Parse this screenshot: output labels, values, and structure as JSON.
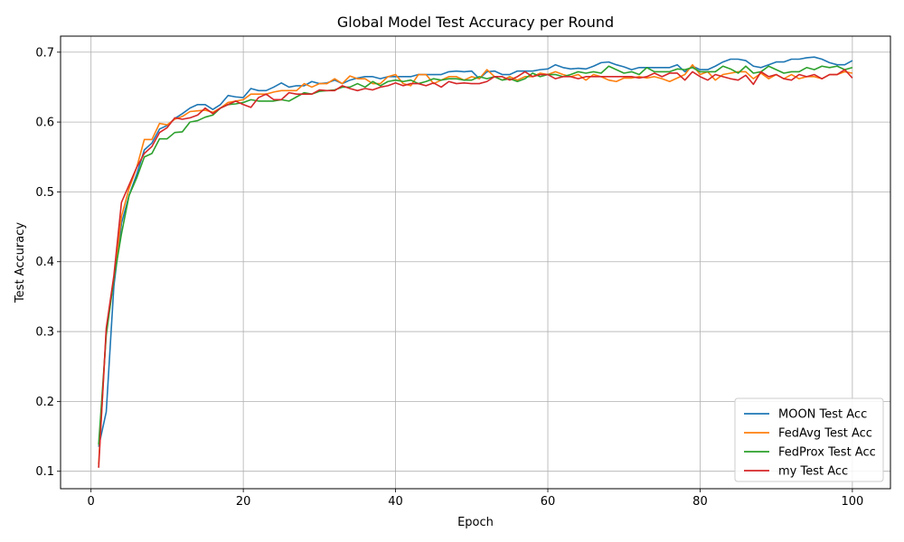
{
  "chart_data": {
    "type": "line",
    "title": "Global Model Test Accuracy per Round",
    "xlabel": "Epoch",
    "ylabel": "Test Accuracy",
    "xlim": [
      -4,
      105
    ],
    "ylim": [
      0.075,
      0.723
    ],
    "x_ticks": [
      0,
      20,
      40,
      60,
      80,
      100
    ],
    "x_tick_labels": [
      "0",
      "20",
      "40",
      "60",
      "80",
      "100"
    ],
    "y_ticks": [
      0.1,
      0.2,
      0.3,
      0.4,
      0.5,
      0.6,
      0.7
    ],
    "y_tick_labels": [
      "0.1",
      "0.2",
      "0.3",
      "0.4",
      "0.5",
      "0.6",
      "0.7"
    ],
    "grid": true,
    "legend_position": "bottom-right",
    "x_start": 1,
    "series": [
      {
        "name": "MOON Test Acc",
        "color": "#1f77b4",
        "values": [
          0.135,
          0.185,
          0.365,
          0.455,
          0.495,
          0.525,
          0.56,
          0.57,
          0.59,
          0.595,
          0.605,
          0.612,
          0.62,
          0.625,
          0.625,
          0.618,
          0.625,
          0.638,
          0.636,
          0.635,
          0.648,
          0.645,
          0.645,
          0.65,
          0.656,
          0.65,
          0.652,
          0.652,
          0.658,
          0.655,
          0.656,
          0.66,
          0.655,
          0.66,
          0.663,
          0.665,
          0.665,
          0.662,
          0.665,
          0.665,
          0.665,
          0.665,
          0.668,
          0.668,
          0.668,
          0.668,
          0.672,
          0.673,
          0.672,
          0.673,
          0.662,
          0.672,
          0.673,
          0.668,
          0.668,
          0.673,
          0.673,
          0.673,
          0.675,
          0.676,
          0.682,
          0.678,
          0.676,
          0.677,
          0.676,
          0.68,
          0.685,
          0.686,
          0.682,
          0.679,
          0.675,
          0.678,
          0.678,
          0.678,
          0.678,
          0.678,
          0.682,
          0.672,
          0.68,
          0.675,
          0.675,
          0.68,
          0.686,
          0.69,
          0.69,
          0.688,
          0.68,
          0.678,
          0.682,
          0.686,
          0.686,
          0.69,
          0.69,
          0.692,
          0.693,
          0.69,
          0.685,
          0.682,
          0.682,
          0.688
        ]
      },
      {
        "name": "FedAvg Test Acc",
        "color": "#ff7f0e",
        "values": [
          0.11,
          0.3,
          0.375,
          0.465,
          0.505,
          0.535,
          0.575,
          0.575,
          0.598,
          0.596,
          0.604,
          0.608,
          0.615,
          0.616,
          0.617,
          0.614,
          0.62,
          0.628,
          0.63,
          0.632,
          0.64,
          0.64,
          0.64,
          0.643,
          0.645,
          0.645,
          0.645,
          0.655,
          0.65,
          0.655,
          0.655,
          0.662,
          0.655,
          0.666,
          0.662,
          0.662,
          0.655,
          0.655,
          0.665,
          0.668,
          0.655,
          0.652,
          0.668,
          0.668,
          0.655,
          0.66,
          0.665,
          0.665,
          0.66,
          0.665,
          0.662,
          0.675,
          0.665,
          0.66,
          0.665,
          0.66,
          0.665,
          0.665,
          0.67,
          0.668,
          0.672,
          0.668,
          0.665,
          0.668,
          0.66,
          0.668,
          0.665,
          0.66,
          0.658,
          0.663,
          0.663,
          0.665,
          0.663,
          0.665,
          0.662,
          0.658,
          0.663,
          0.668,
          0.682,
          0.668,
          0.672,
          0.66,
          0.668,
          0.67,
          0.672,
          0.672,
          0.662,
          0.67,
          0.662,
          0.668,
          0.662,
          0.668,
          0.662,
          0.665,
          0.665,
          0.662,
          0.668,
          0.668,
          0.672,
          0.67
        ]
      },
      {
        "name": "FedProx Test Acc",
        "color": "#2ca02c",
        "values": [
          0.138,
          0.295,
          0.375,
          0.44,
          0.495,
          0.52,
          0.55,
          0.555,
          0.576,
          0.576,
          0.585,
          0.586,
          0.6,
          0.602,
          0.607,
          0.61,
          0.62,
          0.625,
          0.626,
          0.628,
          0.632,
          0.63,
          0.63,
          0.63,
          0.632,
          0.63,
          0.636,
          0.642,
          0.64,
          0.644,
          0.645,
          0.646,
          0.65,
          0.65,
          0.655,
          0.65,
          0.658,
          0.652,
          0.658,
          0.66,
          0.658,
          0.66,
          0.655,
          0.658,
          0.662,
          0.66,
          0.662,
          0.662,
          0.66,
          0.66,
          0.665,
          0.662,
          0.665,
          0.66,
          0.662,
          0.658,
          0.662,
          0.67,
          0.665,
          0.668,
          0.668,
          0.665,
          0.668,
          0.672,
          0.67,
          0.672,
          0.67,
          0.68,
          0.675,
          0.67,
          0.672,
          0.668,
          0.678,
          0.672,
          0.672,
          0.672,
          0.676,
          0.675,
          0.678,
          0.672,
          0.672,
          0.672,
          0.68,
          0.676,
          0.67,
          0.68,
          0.67,
          0.672,
          0.68,
          0.675,
          0.67,
          0.672,
          0.672,
          0.678,
          0.675,
          0.68,
          0.678,
          0.68,
          0.675,
          0.678
        ]
      },
      {
        "name": "my Test Acc",
        "color": "#d62728",
        "values": [
          0.105,
          0.305,
          0.38,
          0.485,
          0.51,
          0.535,
          0.555,
          0.565,
          0.585,
          0.592,
          0.606,
          0.604,
          0.606,
          0.61,
          0.62,
          0.612,
          0.62,
          0.625,
          0.63,
          0.625,
          0.621,
          0.635,
          0.64,
          0.632,
          0.632,
          0.642,
          0.64,
          0.64,
          0.64,
          0.646,
          0.645,
          0.645,
          0.652,
          0.648,
          0.645,
          0.648,
          0.646,
          0.65,
          0.652,
          0.656,
          0.652,
          0.655,
          0.655,
          0.652,
          0.656,
          0.65,
          0.658,
          0.655,
          0.656,
          0.655,
          0.655,
          0.658,
          0.665,
          0.665,
          0.66,
          0.665,
          0.672,
          0.665,
          0.668,
          0.668,
          0.662,
          0.665,
          0.665,
          0.662,
          0.665,
          0.665,
          0.665,
          0.665,
          0.665,
          0.665,
          0.665,
          0.663,
          0.665,
          0.67,
          0.665,
          0.67,
          0.67,
          0.66,
          0.672,
          0.665,
          0.66,
          0.668,
          0.665,
          0.662,
          0.66,
          0.667,
          0.654,
          0.672,
          0.665,
          0.668,
          0.662,
          0.66,
          0.668,
          0.665,
          0.668,
          0.662,
          0.668,
          0.668,
          0.675,
          0.663
        ]
      }
    ]
  }
}
